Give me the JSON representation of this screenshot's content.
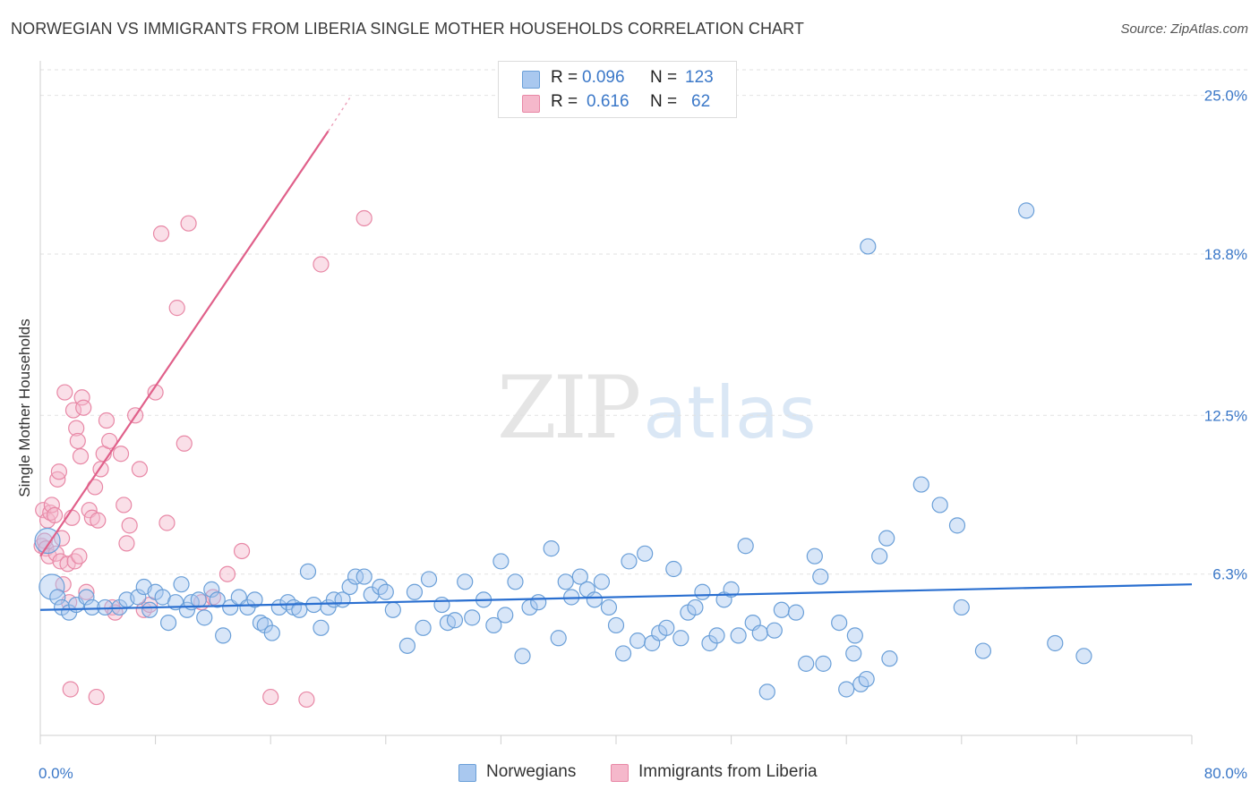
{
  "header": {
    "title": "NORWEGIAN VS IMMIGRANTS FROM LIBERIA SINGLE MOTHER HOUSEHOLDS CORRELATION CHART",
    "source": "Source: ZipAtlas.com"
  },
  "watermark": {
    "zip": "ZIP",
    "atlas": "atlas"
  },
  "legend": {
    "row1": {
      "r_label": "R =",
      "r_value": "0.096",
      "n_label": "N =",
      "n_value": "123"
    },
    "row2": {
      "r_label": "R =",
      "r_value": "0.616",
      "n_label": "N =",
      "n_value": "62"
    }
  },
  "bottom_legend": {
    "series1": "Norwegians",
    "series2": "Immigrants from Liberia"
  },
  "colors": {
    "blue_fill": "#a9c8ef",
    "blue_stroke": "#6a9fd8",
    "blue_line": "#2a6fd0",
    "pink_fill": "#f5b8cb",
    "pink_stroke": "#e888a6",
    "pink_line": "#e0608a",
    "axis_label": "#3b78c8"
  },
  "chart_data": {
    "type": "scatter",
    "title": "NORWEGIAN VS IMMIGRANTS FROM LIBERIA SINGLE MOTHER HOUSEHOLDS CORRELATION CHART",
    "xlabel": "",
    "ylabel": "Single Mother Households",
    "xlim": [
      0,
      80
    ],
    "ylim": [
      0,
      26
    ],
    "x_tick_labels": [
      "0.0%",
      "80.0%"
    ],
    "y_ticks": [
      6.3,
      12.5,
      18.8,
      25.0
    ],
    "y_tick_labels": [
      "6.3%",
      "12.5%",
      "18.8%",
      "25.0%"
    ],
    "grid": true,
    "legend_position": "top-center",
    "series": [
      {
        "name": "Norwegians",
        "R": 0.096,
        "N": 123,
        "trend": {
          "x": [
            0,
            80
          ],
          "y": [
            4.9,
            5.9
          ]
        },
        "points": [
          [
            0.5,
            7.6
          ],
          [
            0.8,
            5.8
          ],
          [
            1.2,
            5.4
          ],
          [
            1.5,
            5.0
          ],
          [
            2.0,
            4.8
          ],
          [
            2.5,
            5.1
          ],
          [
            3.2,
            5.4
          ],
          [
            3.6,
            5.0
          ],
          [
            4.5,
            5.0
          ],
          [
            5.5,
            5.0
          ],
          [
            6.0,
            5.3
          ],
          [
            6.8,
            5.4
          ],
          [
            7.2,
            5.8
          ],
          [
            7.6,
            4.9
          ],
          [
            8.0,
            5.6
          ],
          [
            8.5,
            5.4
          ],
          [
            8.9,
            4.4
          ],
          [
            9.4,
            5.2
          ],
          [
            9.8,
            5.9
          ],
          [
            10.2,
            4.9
          ],
          [
            10.5,
            5.2
          ],
          [
            11.0,
            5.3
          ],
          [
            11.4,
            4.6
          ],
          [
            11.9,
            5.7
          ],
          [
            12.3,
            5.3
          ],
          [
            12.7,
            3.9
          ],
          [
            13.2,
            5.0
          ],
          [
            13.8,
            5.4
          ],
          [
            14.4,
            5.0
          ],
          [
            14.9,
            5.3
          ],
          [
            15.3,
            4.4
          ],
          [
            15.6,
            4.3
          ],
          [
            16.1,
            4.0
          ],
          [
            16.6,
            5.0
          ],
          [
            17.2,
            5.2
          ],
          [
            17.6,
            5.0
          ],
          [
            18.0,
            4.9
          ],
          [
            18.6,
            6.4
          ],
          [
            19.0,
            5.1
          ],
          [
            19.5,
            4.2
          ],
          [
            20.0,
            5.0
          ],
          [
            20.4,
            5.3
          ],
          [
            21.0,
            5.3
          ],
          [
            21.5,
            5.8
          ],
          [
            21.9,
            6.2
          ],
          [
            22.5,
            6.2
          ],
          [
            23.0,
            5.5
          ],
          [
            23.6,
            5.8
          ],
          [
            24.0,
            5.6
          ],
          [
            24.5,
            4.9
          ],
          [
            25.5,
            3.5
          ],
          [
            26.0,
            5.6
          ],
          [
            26.6,
            4.2
          ],
          [
            27.0,
            6.1
          ],
          [
            27.9,
            5.1
          ],
          [
            28.3,
            4.4
          ],
          [
            28.8,
            4.5
          ],
          [
            29.5,
            6.0
          ],
          [
            30.0,
            4.6
          ],
          [
            30.8,
            5.3
          ],
          [
            31.5,
            4.3
          ],
          [
            32.0,
            6.8
          ],
          [
            32.3,
            4.7
          ],
          [
            33.0,
            6.0
          ],
          [
            33.5,
            3.1
          ],
          [
            34.0,
            5.0
          ],
          [
            34.6,
            5.2
          ],
          [
            35.5,
            7.3
          ],
          [
            36.0,
            3.8
          ],
          [
            36.5,
            6.0
          ],
          [
            36.9,
            5.4
          ],
          [
            37.5,
            6.2
          ],
          [
            38.0,
            5.7
          ],
          [
            38.5,
            5.3
          ],
          [
            39.0,
            6.0
          ],
          [
            39.5,
            5.0
          ],
          [
            40.0,
            4.3
          ],
          [
            40.5,
            3.2
          ],
          [
            40.9,
            6.8
          ],
          [
            41.5,
            3.7
          ],
          [
            42.0,
            7.1
          ],
          [
            42.5,
            3.6
          ],
          [
            43.0,
            4.0
          ],
          [
            43.5,
            4.2
          ],
          [
            44.0,
            6.5
          ],
          [
            44.5,
            3.8
          ],
          [
            45.0,
            4.8
          ],
          [
            45.5,
            5.0
          ],
          [
            46.0,
            5.6
          ],
          [
            46.5,
            3.6
          ],
          [
            47.0,
            3.9
          ],
          [
            47.5,
            5.3
          ],
          [
            48.0,
            5.7
          ],
          [
            48.5,
            3.9
          ],
          [
            49.0,
            7.4
          ],
          [
            49.5,
            4.4
          ],
          [
            50.0,
            4.0
          ],
          [
            50.5,
            1.7
          ],
          [
            51.0,
            4.1
          ],
          [
            51.5,
            4.9
          ],
          [
            52.5,
            4.8
          ],
          [
            53.2,
            2.8
          ],
          [
            53.8,
            7.0
          ],
          [
            54.2,
            6.2
          ],
          [
            54.4,
            2.8
          ],
          [
            55.5,
            4.4
          ],
          [
            56.0,
            1.8
          ],
          [
            56.5,
            3.2
          ],
          [
            56.6,
            3.9
          ],
          [
            57.0,
            2.0
          ],
          [
            57.4,
            2.2
          ],
          [
            58.3,
            7.0
          ],
          [
            58.8,
            7.7
          ],
          [
            59.0,
            3.0
          ],
          [
            61.2,
            9.8
          ],
          [
            62.5,
            9.0
          ],
          [
            63.7,
            8.2
          ],
          [
            65.5,
            3.3
          ],
          [
            68.5,
            20.5
          ],
          [
            70.5,
            3.6
          ],
          [
            72.5,
            3.1
          ],
          [
            57.5,
            19.1
          ],
          [
            64.0,
            5.0
          ]
        ]
      },
      {
        "name": "Immigrants from Liberia",
        "R": 0.616,
        "N": 62,
        "trend": {
          "x": [
            0,
            20
          ],
          "y": [
            7.0,
            23.6
          ]
        },
        "trend_dashed": {
          "x": [
            20,
            21.5
          ],
          "y": [
            23.6,
            24.9
          ]
        },
        "points": [
          [
            0.1,
            7.4
          ],
          [
            0.2,
            8.8
          ],
          [
            0.3,
            7.6
          ],
          [
            0.4,
            7.3
          ],
          [
            0.5,
            8.4
          ],
          [
            0.6,
            7.0
          ],
          [
            0.7,
            8.7
          ],
          [
            0.8,
            9.0
          ],
          [
            1.0,
            8.6
          ],
          [
            1.1,
            7.1
          ],
          [
            1.2,
            10.0
          ],
          [
            1.3,
            10.3
          ],
          [
            1.4,
            6.8
          ],
          [
            1.5,
            7.7
          ],
          [
            1.6,
            5.9
          ],
          [
            1.7,
            13.4
          ],
          [
            1.9,
            6.7
          ],
          [
            2.0,
            5.2
          ],
          [
            2.2,
            8.5
          ],
          [
            2.3,
            12.7
          ],
          [
            2.4,
            6.8
          ],
          [
            2.5,
            12.0
          ],
          [
            2.6,
            11.5
          ],
          [
            2.7,
            7.0
          ],
          [
            2.8,
            10.9
          ],
          [
            2.9,
            13.2
          ],
          [
            3.0,
            12.8
          ],
          [
            3.2,
            5.6
          ],
          [
            3.4,
            8.8
          ],
          [
            3.6,
            8.5
          ],
          [
            3.8,
            9.7
          ],
          [
            4.0,
            8.4
          ],
          [
            4.2,
            10.4
          ],
          [
            4.4,
            11.0
          ],
          [
            4.6,
            12.3
          ],
          [
            4.8,
            11.5
          ],
          [
            5.0,
            5.0
          ],
          [
            5.2,
            4.8
          ],
          [
            5.6,
            11.0
          ],
          [
            5.8,
            9.0
          ],
          [
            6.0,
            7.5
          ],
          [
            6.2,
            8.2
          ],
          [
            6.6,
            12.5
          ],
          [
            6.9,
            10.4
          ],
          [
            7.2,
            4.9
          ],
          [
            7.6,
            5.1
          ],
          [
            8.0,
            13.4
          ],
          [
            8.4,
            19.6
          ],
          [
            8.8,
            8.3
          ],
          [
            9.5,
            16.7
          ],
          [
            10.0,
            11.4
          ],
          [
            10.3,
            20.0
          ],
          [
            11.2,
            5.2
          ],
          [
            12.0,
            5.4
          ],
          [
            13.0,
            6.3
          ],
          [
            14.0,
            7.2
          ],
          [
            16.0,
            1.5
          ],
          [
            18.5,
            1.4
          ],
          [
            19.5,
            18.4
          ],
          [
            22.5,
            20.2
          ],
          [
            2.1,
            1.8
          ],
          [
            3.9,
            1.5
          ]
        ]
      }
    ]
  }
}
